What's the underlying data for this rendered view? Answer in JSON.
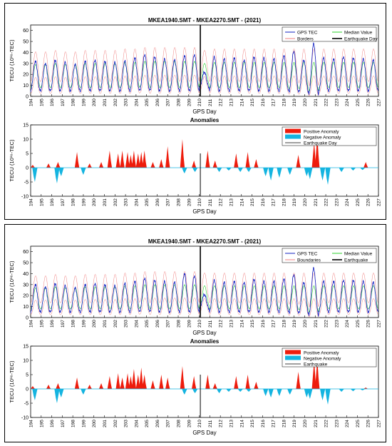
{
  "chart_data": [
    {
      "type": "line",
      "title": "MKEA1940.SMT - MKEA2270.SMT - (2021)",
      "xlabel": "GPS Day",
      "ylabel": "TECU (10¹⁶-TEC)",
      "xlim": [
        194,
        227
      ],
      "ylim": [
        0,
        65
      ],
      "xticks": [
        194,
        195,
        196,
        197,
        198,
        199,
        200,
        201,
        202,
        203,
        204,
        205,
        206,
        207,
        208,
        209,
        210,
        211,
        212,
        213,
        214,
        215,
        216,
        217,
        218,
        219,
        220,
        221,
        222,
        223,
        224,
        225,
        226,
        227
      ],
      "yticks": [
        0,
        10,
        20,
        30,
        40,
        50,
        60
      ],
      "earthquake_day": 210.1,
      "legend_position": "top-right",
      "legend": [
        "GPS TEC",
        "Median Value",
        "Borders",
        "Earthquake Day"
      ],
      "daily_gps_peaks": [
        32,
        30,
        33,
        31,
        29,
        32,
        33,
        32,
        31,
        32,
        35,
        38,
        36,
        34,
        33,
        37,
        38,
        22,
        36,
        34,
        35,
        33,
        36,
        35,
        34,
        37,
        41,
        33,
        48,
        35,
        34,
        36,
        35,
        34,
        33
      ],
      "daily_median_peaks": [
        29,
        29,
        30,
        29,
        29,
        30,
        30,
        30,
        30,
        31,
        31,
        32,
        32,
        32,
        32,
        32,
        32,
        30,
        31,
        31,
        31,
        31,
        31,
        31,
        31,
        31,
        31,
        31,
        31,
        31,
        31,
        31,
        31,
        31,
        31
      ],
      "daily_minimum": [
        5,
        5,
        5,
        5,
        5,
        5,
        5,
        5,
        5,
        5,
        5,
        6,
        5,
        5,
        5,
        5,
        5,
        8,
        5,
        5,
        5,
        5,
        5,
        5,
        5,
        5,
        4,
        4,
        2,
        5,
        5,
        5,
        5,
        5,
        5
      ]
    },
    {
      "type": "bar",
      "title": "Anomalies",
      "xlabel": "GPS Day",
      "ylabel": "TECU (10¹⁶-TEC)",
      "xlim": [
        194,
        227
      ],
      "ylim": [
        -10,
        15
      ],
      "yticks": [
        -10,
        -5,
        0,
        5,
        10,
        15
      ],
      "earthquake_day": 210.1,
      "legend_position": "top-right",
      "legend": [
        "Positive Anomaly",
        "Negative Anomaly",
        "Earthquake Day"
      ],
      "positive": [
        [
          194.2,
          1
        ],
        [
          195.7,
          1.5
        ],
        [
          196.6,
          2
        ],
        [
          198.4,
          5.5
        ],
        [
          199.6,
          1.5
        ],
        [
          200.7,
          2
        ],
        [
          201.5,
          6
        ],
        [
          202.3,
          5
        ],
        [
          202.7,
          6
        ],
        [
          203.2,
          5.5
        ],
        [
          203.5,
          4.5
        ],
        [
          203.8,
          6
        ],
        [
          204.2,
          5
        ],
        [
          204.5,
          5.5
        ],
        [
          204.8,
          6
        ],
        [
          205.6,
          2
        ],
        [
          206.4,
          3
        ],
        [
          207.0,
          7.5
        ],
        [
          208.4,
          10
        ],
        [
          209.5,
          2.5
        ],
        [
          210.8,
          6
        ],
        [
          211.5,
          2.5
        ],
        [
          213.5,
          5
        ],
        [
          214.6,
          5.5
        ],
        [
          215.4,
          3
        ],
        [
          219.4,
          4.5
        ],
        [
          220.9,
          9
        ],
        [
          221.2,
          11.5
        ],
        [
          225.8,
          2
        ]
      ],
      "negative": [
        [
          194.4,
          -5
        ],
        [
          196.5,
          -5.5
        ],
        [
          196.9,
          -3
        ],
        [
          199.0,
          -2.5
        ],
        [
          208.6,
          -2
        ],
        [
          209.6,
          -1.5
        ],
        [
          211.9,
          -1.5
        ],
        [
          212.8,
          -1
        ],
        [
          213.9,
          -1.5
        ],
        [
          214.7,
          -1.5
        ],
        [
          216.3,
          -3
        ],
        [
          216.8,
          -4.5
        ],
        [
          217.6,
          -3.5
        ],
        [
          218.6,
          -2.5
        ],
        [
          220.2,
          -3
        ],
        [
          220.5,
          -4
        ],
        [
          221.7,
          -4.5
        ],
        [
          222.2,
          -6
        ],
        [
          223.5,
          -1.5
        ],
        [
          224.6,
          -1
        ],
        [
          225.5,
          -0.8
        ]
      ]
    },
    {
      "type": "line",
      "title": "MKEA1940.SMT - MKEA2270.SMT - (2021)",
      "xlabel": "GPS Day",
      "ylabel": "TECU (10¹⁶-TEC)",
      "xlim": [
        194,
        227
      ],
      "ylim": [
        0,
        65
      ],
      "xticks": [
        194,
        195,
        196,
        197,
        198,
        199,
        200,
        201,
        202,
        203,
        204,
        205,
        206,
        207,
        208,
        209,
        210,
        211,
        212,
        213,
        214,
        215,
        216,
        217,
        218,
        219,
        220,
        221,
        222,
        223,
        224,
        225,
        226,
        227
      ],
      "yticks": [
        0,
        10,
        20,
        30,
        40,
        50,
        60
      ],
      "earthquake_day": 210.1,
      "legend_position": "top-right",
      "legend": [
        "GPS TEC",
        "Median Value",
        "Boundaries",
        "Earthquake"
      ],
      "daily_gps_peaks": [
        30,
        28,
        31,
        29,
        27,
        30,
        31,
        30,
        29,
        31,
        33,
        36,
        34,
        33,
        32,
        40,
        38,
        21,
        34,
        32,
        33,
        32,
        35,
        33,
        33,
        35,
        39,
        32,
        45,
        33,
        33,
        34,
        34,
        33,
        32
      ],
      "daily_median_peaks": [
        27,
        27,
        28,
        27,
        27,
        28,
        28,
        28,
        28,
        29,
        29,
        30,
        30,
        30,
        30,
        30,
        30,
        29,
        29,
        29,
        29,
        29,
        29,
        29,
        29,
        29,
        29,
        29,
        29,
        29,
        29,
        29,
        29,
        29,
        29
      ],
      "daily_minimum": [
        5,
        5,
        5,
        5,
        5,
        5,
        5,
        5,
        5,
        5,
        5,
        6,
        5,
        5,
        5,
        5,
        5,
        8,
        5,
        5,
        5,
        5,
        5,
        5,
        5,
        5,
        4,
        4,
        2,
        5,
        5,
        5,
        5,
        5,
        5
      ]
    },
    {
      "type": "bar",
      "title": "Anomalies",
      "xlabel": "GPS Day",
      "ylabel": "TECU (10¹⁶-TEC)",
      "xlim": [
        194,
        227
      ],
      "ylim": [
        -10,
        15
      ],
      "yticks": [
        -10,
        -5,
        0,
        5,
        10,
        15
      ],
      "earthquake_day": 210.1,
      "legend_position": "top-right",
      "legend": [
        "Positive Anomaly",
        "Negative Anomaly",
        "Earthquake"
      ],
      "positive": [
        [
          194.2,
          1
        ],
        [
          195.7,
          1.5
        ],
        [
          196.6,
          2
        ],
        [
          198.4,
          4
        ],
        [
          199.6,
          1.5
        ],
        [
          200.7,
          2
        ],
        [
          201.5,
          4.5
        ],
        [
          202.3,
          5.5
        ],
        [
          202.7,
          4
        ],
        [
          203.2,
          5.5
        ],
        [
          203.5,
          4.5
        ],
        [
          203.8,
          7
        ],
        [
          204.2,
          5
        ],
        [
          204.5,
          7.5
        ],
        [
          204.8,
          5
        ],
        [
          205.6,
          3
        ],
        [
          206.4,
          5
        ],
        [
          207.0,
          4
        ],
        [
          208.4,
          8
        ],
        [
          209.5,
          4.5
        ],
        [
          210.8,
          5
        ],
        [
          211.5,
          2
        ],
        [
          213.5,
          4.5
        ],
        [
          214.6,
          5
        ],
        [
          215.4,
          2.5
        ],
        [
          219.4,
          6
        ],
        [
          220.9,
          10
        ],
        [
          221.2,
          10.5
        ],
        [
          225.8,
          0.5
        ]
      ],
      "negative": [
        [
          194.4,
          -4
        ],
        [
          196.5,
          -5
        ],
        [
          196.9,
          -3
        ],
        [
          199.0,
          -2
        ],
        [
          208.6,
          -2
        ],
        [
          209.6,
          -1.5
        ],
        [
          211.9,
          -1.5
        ],
        [
          212.8,
          -1
        ],
        [
          213.9,
          -1
        ],
        [
          214.7,
          -1
        ],
        [
          216.3,
          -2.5
        ],
        [
          216.8,
          -3
        ],
        [
          217.6,
          -2.5
        ],
        [
          218.6,
          -2
        ],
        [
          220.2,
          -3
        ],
        [
          220.5,
          -3.5
        ],
        [
          221.7,
          -4
        ],
        [
          222.2,
          -5.5
        ],
        [
          223.5,
          -1
        ],
        [
          224.6,
          -0.8
        ],
        [
          225.5,
          -0.5
        ]
      ]
    }
  ]
}
